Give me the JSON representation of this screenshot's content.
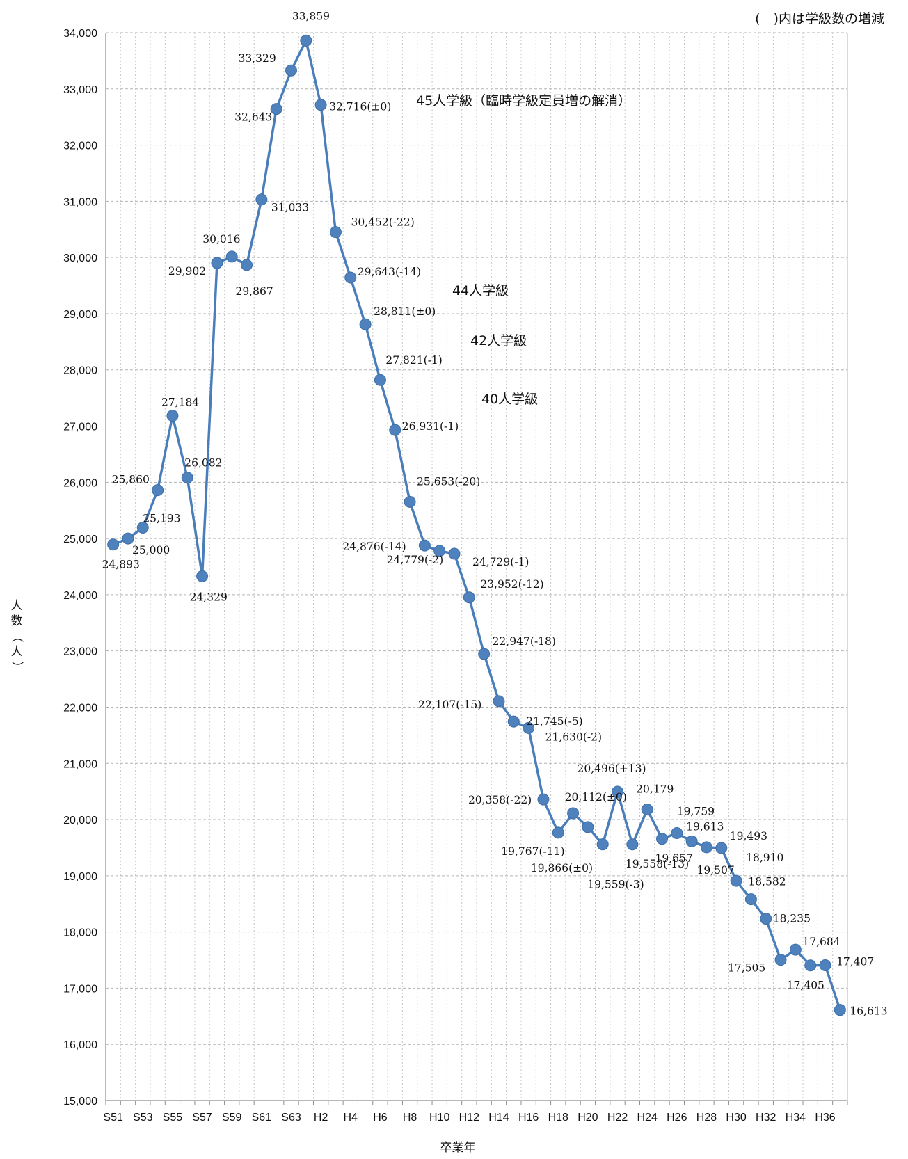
{
  "chart_data": {
    "type": "line",
    "unit_note": "(　)内は学級数の増減",
    "xlabel": "卒業年",
    "ylabel": "人数（人）",
    "ylim": [
      15000,
      34000
    ],
    "y_ticks": [
      "15,000",
      "16,000",
      "17,000",
      "18,000",
      "19,000",
      "20,000",
      "21,000",
      "22,000",
      "23,000",
      "24,000",
      "25,000",
      "26,000",
      "27,000",
      "28,000",
      "29,000",
      "30,000",
      "31,000",
      "32,000",
      "33,000",
      "34,000"
    ],
    "x_tick_labels": [
      "S51",
      "S53",
      "S55",
      "S57",
      "S59",
      "S61",
      "S63",
      "H2",
      "H4",
      "H6",
      "H8",
      "H10",
      "H12",
      "H14",
      "H16",
      "H18",
      "H20",
      "H22",
      "H24",
      "H26",
      "H28",
      "H30",
      "H32",
      "H34",
      "H36"
    ],
    "categories": [
      "S51",
      "S52",
      "S53",
      "S54",
      "S55",
      "S56",
      "S57",
      "S58",
      "S59",
      "S60",
      "S61",
      "S62",
      "S63",
      "H1",
      "H2",
      "H3",
      "H4",
      "H5",
      "H6",
      "H7",
      "H8",
      "H9",
      "H10",
      "H11",
      "H12",
      "H13",
      "H14",
      "H15",
      "H16",
      "H17",
      "H18",
      "H19",
      "H20",
      "H21",
      "H22",
      "H23",
      "H24",
      "H25",
      "H26",
      "H27",
      "H28",
      "H29",
      "H30",
      "H31",
      "H32",
      "H33",
      "H34",
      "H35",
      "H36",
      "H37"
    ],
    "values": [
      24893,
      25000,
      25193,
      25860,
      27184,
      26082,
      24329,
      29902,
      30016,
      29867,
      31033,
      32643,
      33329,
      33859,
      32716,
      30452,
      29643,
      28811,
      27821,
      26931,
      25653,
      24876,
      24779,
      24729,
      23952,
      22947,
      22107,
      21745,
      21630,
      20358,
      19767,
      20112,
      19866,
      19559,
      20496,
      19558,
      20179,
      19657,
      19759,
      19613,
      19507,
      19493,
      18910,
      18582,
      18235,
      17505,
      17684,
      17405,
      17407,
      16613
    ],
    "data_labels": [
      "24,893",
      "25,000",
      "25,193",
      "25,860",
      "27,184",
      "26,082",
      "24,329",
      "29,902",
      "30,016",
      "29,867",
      "31,033",
      "32,643",
      "33,329",
      "33,859",
      "32,716(±0)",
      "30,452(-22)",
      "29,643(-14)",
      "28,811(±0)",
      "27,821(-1)",
      "26,931(-1)",
      "25,653(-20)",
      "24,876(-14)",
      "24,779(-2)",
      "24,729(-1)",
      "23,952(-12)",
      "22,947(-18)",
      "22,107(-15)",
      "21,745(-5)",
      "21,630(-2)",
      "20,358(-22)",
      "19,767(-11)",
      "20,112(±0)",
      "19,866(±0)",
      "19,559(-3)",
      "20,496(+13)",
      "19,558(-13)",
      "20,179",
      "19,657",
      "19,759",
      "19,613",
      "19,507",
      "19,493",
      "18,910",
      "18,582",
      "18,235",
      "17,505",
      "17,684",
      "17,405",
      "17,407",
      "16,613"
    ],
    "annotations": [
      "45人学級（臨時学級定員増の解消）",
      "44人学級",
      "42人学級",
      "40人学級"
    ],
    "grid": true,
    "line_color": "#4a7ebb",
    "marker_color": "#4f81bd"
  }
}
